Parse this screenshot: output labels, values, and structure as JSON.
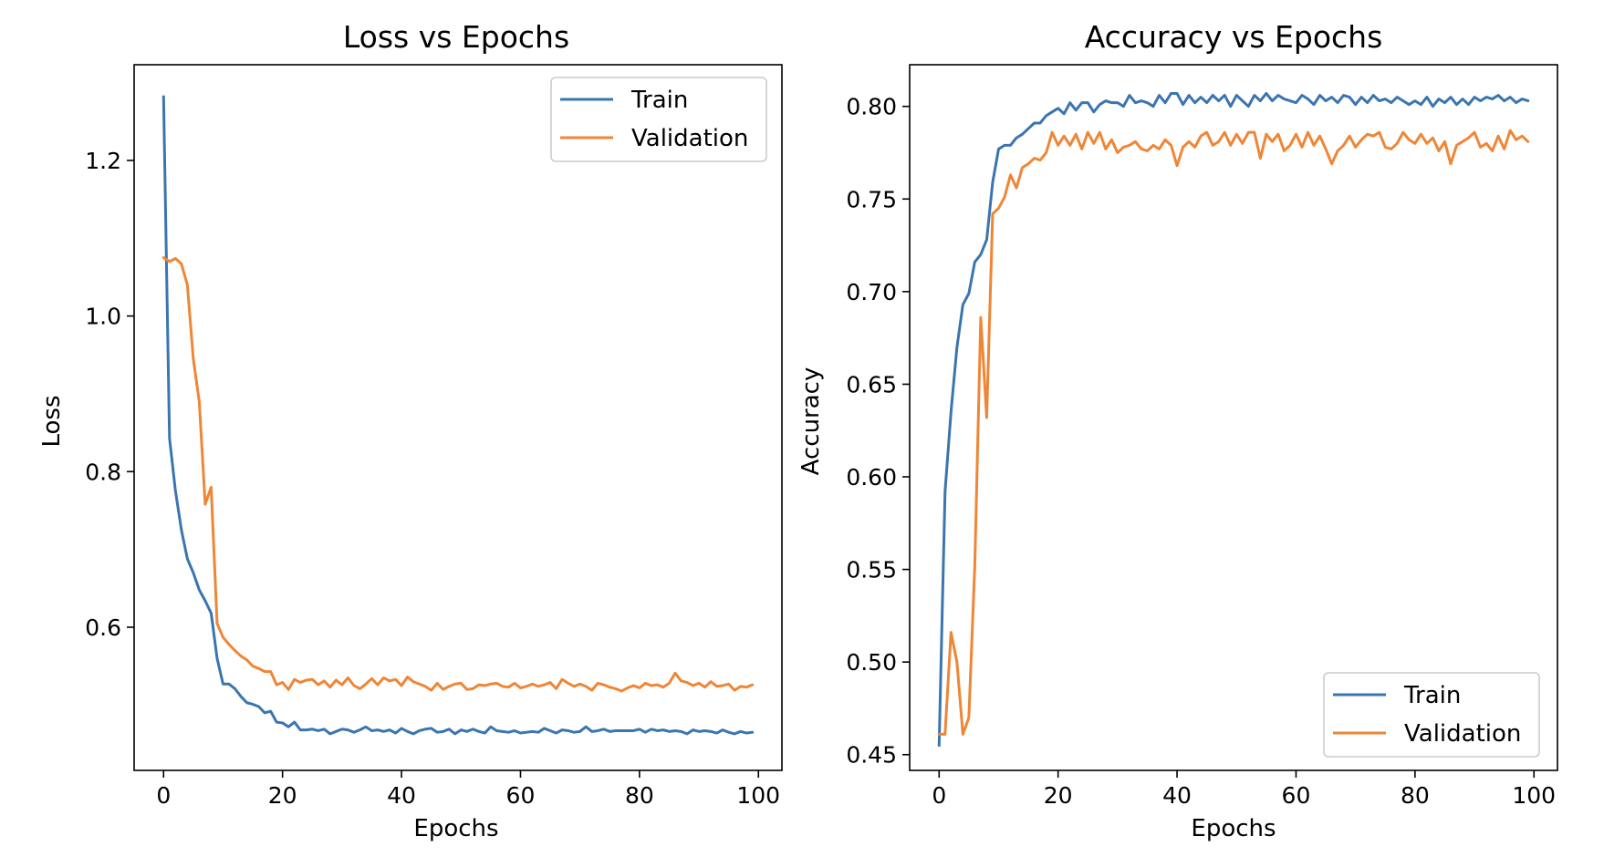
{
  "colors": {
    "train": "#3b75af",
    "validation": "#ef8636"
  },
  "chart_data": [
    {
      "type": "line",
      "title": "Loss vs Epochs",
      "xlabel": "Epochs",
      "ylabel": "Loss",
      "xlim": [
        -4.95,
        103.95
      ],
      "ylim": [
        0.416,
        1.323
      ],
      "xticks": [
        0,
        20,
        40,
        60,
        80,
        100
      ],
      "xtick_labels": [
        "0",
        "20",
        "40",
        "60",
        "80",
        "100"
      ],
      "yticks": [
        0.6,
        0.8,
        1.0,
        1.2
      ],
      "ytick_labels": [
        "0.6",
        "0.8",
        "1.0",
        "1.2"
      ],
      "grid": false,
      "legend_position": "upper-right",
      "x": [
        0,
        1,
        2,
        3,
        4,
        5,
        6,
        7,
        8,
        9,
        10,
        11,
        12,
        13,
        14,
        15,
        16,
        17,
        18,
        19,
        20,
        21,
        22,
        23,
        24,
        25,
        26,
        27,
        28,
        29,
        30,
        31,
        32,
        33,
        34,
        35,
        36,
        37,
        38,
        39,
        40,
        41,
        42,
        43,
        44,
        45,
        46,
        47,
        48,
        49,
        50,
        51,
        52,
        53,
        54,
        55,
        56,
        57,
        58,
        59,
        60,
        61,
        62,
        63,
        64,
        65,
        66,
        67,
        68,
        69,
        70,
        71,
        72,
        73,
        74,
        75,
        76,
        77,
        78,
        79,
        80,
        81,
        82,
        83,
        84,
        85,
        86,
        87,
        88,
        89,
        90,
        91,
        92,
        93,
        94,
        95,
        96,
        97,
        98,
        99
      ],
      "series": [
        {
          "name": "Train",
          "color_key": "train",
          "values": [
            1.282,
            0.843,
            0.775,
            0.725,
            0.688,
            0.67,
            0.648,
            0.634,
            0.618,
            0.56,
            0.527,
            0.527,
            0.521,
            0.511,
            0.503,
            0.501,
            0.498,
            0.49,
            0.492,
            0.478,
            0.477,
            0.472,
            0.478,
            0.468,
            0.468,
            0.469,
            0.467,
            0.469,
            0.463,
            0.466,
            0.469,
            0.468,
            0.465,
            0.468,
            0.472,
            0.467,
            0.468,
            0.466,
            0.468,
            0.464,
            0.47,
            0.466,
            0.463,
            0.467,
            0.469,
            0.47,
            0.465,
            0.466,
            0.469,
            0.463,
            0.468,
            0.466,
            0.469,
            0.466,
            0.464,
            0.472,
            0.467,
            0.466,
            0.465,
            0.467,
            0.464,
            0.465,
            0.466,
            0.465,
            0.47,
            0.467,
            0.464,
            0.468,
            0.467,
            0.465,
            0.466,
            0.472,
            0.466,
            0.467,
            0.469,
            0.466,
            0.467,
            0.467,
            0.467,
            0.467,
            0.469,
            0.465,
            0.469,
            0.467,
            0.468,
            0.466,
            0.467,
            0.466,
            0.463,
            0.468,
            0.466,
            0.467,
            0.466,
            0.464,
            0.468,
            0.465,
            0.463,
            0.466,
            0.464,
            0.465
          ]
        },
        {
          "name": "Validation",
          "color_key": "validation",
          "values": [
            1.075,
            1.07,
            1.074,
            1.067,
            1.04,
            0.945,
            0.89,
            0.758,
            0.78,
            0.605,
            0.587,
            0.578,
            0.57,
            0.563,
            0.558,
            0.55,
            0.547,
            0.543,
            0.543,
            0.526,
            0.529,
            0.52,
            0.533,
            0.529,
            0.532,
            0.533,
            0.526,
            0.531,
            0.523,
            0.532,
            0.526,
            0.535,
            0.525,
            0.521,
            0.527,
            0.534,
            0.526,
            0.535,
            0.531,
            0.533,
            0.525,
            0.536,
            0.53,
            0.527,
            0.524,
            0.519,
            0.528,
            0.52,
            0.524,
            0.527,
            0.528,
            0.52,
            0.521,
            0.526,
            0.525,
            0.527,
            0.528,
            0.524,
            0.523,
            0.528,
            0.522,
            0.524,
            0.527,
            0.524,
            0.526,
            0.529,
            0.521,
            0.533,
            0.528,
            0.524,
            0.527,
            0.524,
            0.519,
            0.528,
            0.526,
            0.523,
            0.521,
            0.518,
            0.522,
            0.525,
            0.522,
            0.528,
            0.525,
            0.526,
            0.523,
            0.528,
            0.541,
            0.531,
            0.529,
            0.525,
            0.528,
            0.523,
            0.53,
            0.524,
            0.525,
            0.527,
            0.519,
            0.524,
            0.523,
            0.526
          ]
        }
      ]
    },
    {
      "type": "line",
      "title": "Accuracy vs Epochs",
      "xlabel": "Epochs",
      "ylabel": "Accuracy",
      "xlim": [
        -4.95,
        103.95
      ],
      "ylim": [
        0.4415,
        0.8225
      ],
      "xticks": [
        0,
        20,
        40,
        60,
        80,
        100
      ],
      "xtick_labels": [
        "0",
        "20",
        "40",
        "60",
        "80",
        "100"
      ],
      "yticks": [
        0.45,
        0.5,
        0.55,
        0.6,
        0.65,
        0.7,
        0.75,
        0.8
      ],
      "ytick_labels": [
        "0.45",
        "0.50",
        "0.55",
        "0.60",
        "0.65",
        "0.70",
        "0.75",
        "0.80"
      ],
      "grid": false,
      "legend_position": "lower-right",
      "x": [
        0,
        1,
        2,
        3,
        4,
        5,
        6,
        7,
        8,
        9,
        10,
        11,
        12,
        13,
        14,
        15,
        16,
        17,
        18,
        19,
        20,
        21,
        22,
        23,
        24,
        25,
        26,
        27,
        28,
        29,
        30,
        31,
        32,
        33,
        34,
        35,
        36,
        37,
        38,
        39,
        40,
        41,
        42,
        43,
        44,
        45,
        46,
        47,
        48,
        49,
        50,
        51,
        52,
        53,
        54,
        55,
        56,
        57,
        58,
        59,
        60,
        61,
        62,
        63,
        64,
        65,
        66,
        67,
        68,
        69,
        70,
        71,
        72,
        73,
        74,
        75,
        76,
        77,
        78,
        79,
        80,
        81,
        82,
        83,
        84,
        85,
        86,
        87,
        88,
        89,
        90,
        91,
        92,
        93,
        94,
        95,
        96,
        97,
        98,
        99
      ],
      "series": [
        {
          "name": "Train",
          "color_key": "train",
          "values": [
            0.455,
            0.592,
            0.635,
            0.67,
            0.693,
            0.699,
            0.716,
            0.72,
            0.728,
            0.759,
            0.777,
            0.779,
            0.779,
            0.783,
            0.785,
            0.788,
            0.791,
            0.791,
            0.795,
            0.797,
            0.799,
            0.796,
            0.802,
            0.798,
            0.802,
            0.802,
            0.797,
            0.801,
            0.803,
            0.802,
            0.802,
            0.8,
            0.806,
            0.802,
            0.803,
            0.802,
            0.8,
            0.806,
            0.802,
            0.807,
            0.807,
            0.801,
            0.806,
            0.802,
            0.805,
            0.802,
            0.806,
            0.803,
            0.806,
            0.8,
            0.806,
            0.803,
            0.8,
            0.806,
            0.803,
            0.807,
            0.803,
            0.806,
            0.804,
            0.803,
            0.802,
            0.806,
            0.804,
            0.801,
            0.806,
            0.803,
            0.805,
            0.802,
            0.806,
            0.805,
            0.801,
            0.805,
            0.802,
            0.806,
            0.803,
            0.804,
            0.802,
            0.805,
            0.803,
            0.801,
            0.803,
            0.801,
            0.805,
            0.8,
            0.804,
            0.802,
            0.805,
            0.801,
            0.804,
            0.801,
            0.805,
            0.803,
            0.805,
            0.804,
            0.806,
            0.803,
            0.805,
            0.802,
            0.804,
            0.803
          ]
        },
        {
          "name": "Validation",
          "color_key": "validation",
          "values": [
            0.461,
            0.461,
            0.516,
            0.5,
            0.461,
            0.47,
            0.552,
            0.686,
            0.632,
            0.742,
            0.745,
            0.751,
            0.763,
            0.756,
            0.767,
            0.769,
            0.772,
            0.771,
            0.775,
            0.786,
            0.779,
            0.784,
            0.779,
            0.785,
            0.777,
            0.786,
            0.78,
            0.786,
            0.777,
            0.782,
            0.775,
            0.778,
            0.779,
            0.781,
            0.777,
            0.776,
            0.779,
            0.777,
            0.782,
            0.779,
            0.768,
            0.778,
            0.781,
            0.778,
            0.784,
            0.786,
            0.779,
            0.781,
            0.786,
            0.779,
            0.785,
            0.78,
            0.786,
            0.786,
            0.772,
            0.785,
            0.781,
            0.785,
            0.776,
            0.779,
            0.785,
            0.778,
            0.786,
            0.779,
            0.784,
            0.777,
            0.769,
            0.776,
            0.779,
            0.784,
            0.778,
            0.782,
            0.785,
            0.784,
            0.786,
            0.778,
            0.777,
            0.78,
            0.786,
            0.782,
            0.78,
            0.785,
            0.78,
            0.783,
            0.776,
            0.781,
            0.769,
            0.779,
            0.781,
            0.783,
            0.786,
            0.778,
            0.78,
            0.776,
            0.784,
            0.777,
            0.787,
            0.782,
            0.784,
            0.781
          ]
        }
      ]
    }
  ]
}
